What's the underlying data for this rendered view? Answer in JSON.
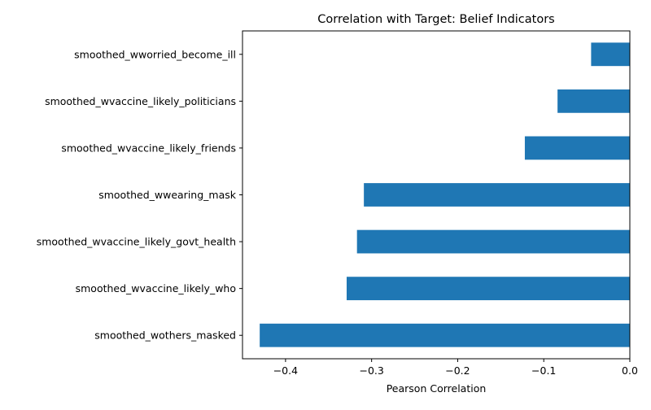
{
  "chart_data": {
    "type": "bar",
    "orientation": "horizontal",
    "title": "Correlation with Target: Belief Indicators",
    "xlabel": "Pearson Correlation",
    "ylabel": "",
    "xlim": [
      -0.45,
      0.0
    ],
    "x_ticks": [
      -0.4,
      -0.3,
      -0.2,
      -0.1,
      0.0
    ],
    "x_tick_labels": [
      "−0.4",
      "−0.3",
      "−0.2",
      "−0.1",
      "0.0"
    ],
    "categories": [
      "smoothed_wworried_become_ill",
      "smoothed_wvaccine_likely_politicians",
      "smoothed_wvaccine_likely_friends",
      "smoothed_wwearing_mask",
      "smoothed_wvaccine_likely_govt_health",
      "smoothed_wvaccine_likely_who",
      "smoothed_wothers_masked"
    ],
    "values": [
      -0.045,
      -0.084,
      -0.122,
      -0.309,
      -0.317,
      -0.329,
      -0.43
    ],
    "bar_color": "#1f77b4",
    "grid": false,
    "legend": "none"
  }
}
